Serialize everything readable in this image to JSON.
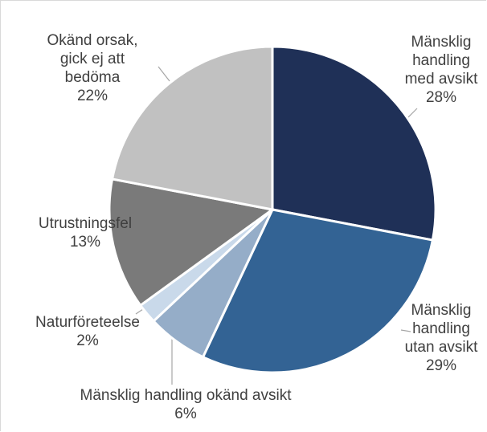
{
  "chart_data": {
    "type": "pie",
    "categories": [
      "Mänsklig handling med avsikt",
      "Mänsklig handling utan avsikt",
      "Mänsklig handling okänd avsikt",
      "Naturföreteelse",
      "Utrustningsfel",
      "Okänd orsak, gick ej att bedöma"
    ],
    "values": [
      28,
      29,
      6,
      2,
      13,
      22
    ],
    "value_labels": [
      "28%",
      "29%",
      "6%",
      "2%",
      "13%",
      "22%"
    ],
    "colors": [
      "#1f3057",
      "#336394",
      "#95adc8",
      "#c9d9ea",
      "#7a7a7a",
      "#c1c1c1"
    ]
  }
}
